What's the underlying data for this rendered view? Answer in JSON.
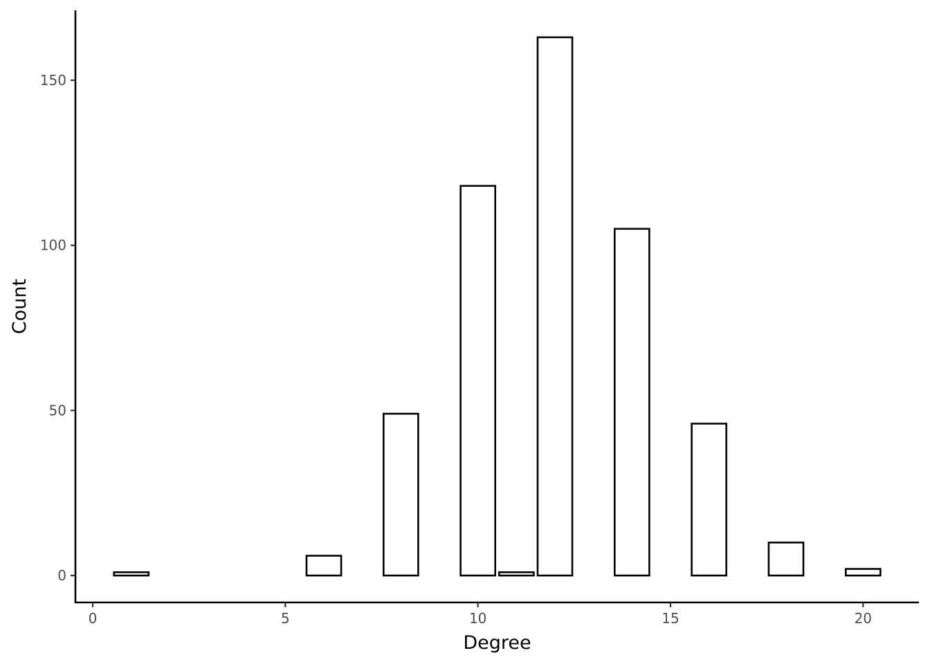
{
  "chart_data": {
    "type": "bar",
    "xlabel": "Degree",
    "ylabel": "Count",
    "x": [
      1,
      6,
      8,
      10,
      11,
      12,
      14,
      16,
      18,
      20
    ],
    "values": [
      1,
      6,
      49,
      118,
      1,
      163,
      105,
      46,
      10,
      2
    ],
    "bar_width": 0.9,
    "xlim": [
      -0.45,
      21.45
    ],
    "ylim": [
      -8.15,
      171.15
    ],
    "xticks": [
      0,
      5,
      10,
      15,
      20
    ],
    "yticks": [
      0,
      50,
      100,
      150
    ],
    "xtick_labels": [
      "0",
      "5",
      "10",
      "15",
      "20"
    ],
    "ytick_labels": [
      "0",
      "50",
      "100",
      "150"
    ],
    "grid": false,
    "legend": "none",
    "colors": {
      "bar_fill": "#ffffff",
      "bar_stroke": "#000000",
      "axis": "#000000",
      "tick_label": "#4d4d4d"
    }
  }
}
